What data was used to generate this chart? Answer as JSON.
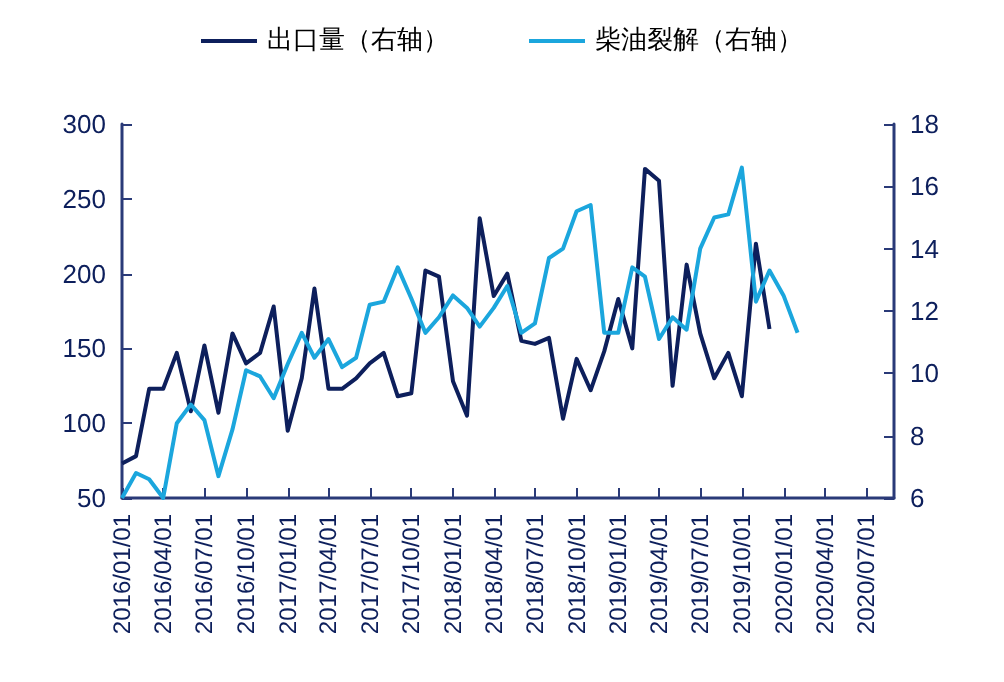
{
  "chart_data": {
    "type": "line",
    "legend": "top",
    "grid": false,
    "marker": "none",
    "line_style": "solid",
    "x": [
      "2016-01-01",
      "2016-02-01",
      "2016-03-01",
      "2016-04-01",
      "2016-05-01",
      "2016-06-01",
      "2016-07-01",
      "2016-08-01",
      "2016-09-01",
      "2016-10-01",
      "2016-11-01",
      "2016-12-01",
      "2017-01-01",
      "2017-02-01",
      "2017-03-01",
      "2017-04-01",
      "2017-05-01",
      "2017-06-01",
      "2017-07-01",
      "2017-08-01",
      "2017-09-01",
      "2017-10-01",
      "2017-11-01",
      "2017-12-01",
      "2018-01-01",
      "2018-02-01",
      "2018-03-01",
      "2018-04-01",
      "2018-05-01",
      "2018-06-01",
      "2018-07-01",
      "2018-08-01",
      "2018-09-01",
      "2018-10-01",
      "2018-11-01",
      "2018-12-01",
      "2019-01-01",
      "2019-02-01",
      "2019-03-01",
      "2019-04-01",
      "2019-05-01",
      "2019-06-01",
      "2019-07-01",
      "2019-08-01",
      "2019-09-01",
      "2019-10-01",
      "2019-11-01",
      "2019-12-01",
      "2020-01-01",
      "2020-02-01"
    ],
    "series": [
      {
        "name": "出口量（右轴）",
        "color": "#0d1f5c",
        "axis": "y",
        "values": [
          73,
          78,
          123,
          123,
          147,
          108,
          152,
          107,
          160,
          140,
          147,
          178,
          95,
          130,
          190,
          123,
          123,
          130,
          140,
          147,
          118,
          120,
          202,
          198,
          128,
          105,
          237,
          185,
          200,
          155,
          153,
          157,
          103,
          143,
          122,
          148,
          183,
          150,
          270,
          262,
          125,
          206,
          160,
          130,
          147,
          118,
          220,
          163,
          null,
          null
        ]
      },
      {
        "name": "柴油裂解（右轴）",
        "color": "#1ba6dd",
        "axis": "y2",
        "values": [
          6.0,
          6.8,
          6.6,
          6.0,
          8.4,
          9.0,
          8.5,
          6.7,
          8.2,
          10.1,
          9.9,
          9.2,
          10.3,
          11.3,
          10.5,
          11.1,
          10.2,
          10.5,
          12.2,
          12.3,
          13.4,
          12.4,
          11.3,
          11.8,
          12.5,
          12.1,
          11.5,
          12.1,
          12.8,
          11.3,
          11.6,
          13.7,
          14.0,
          15.2,
          15.4,
          11.3,
          11.3,
          13.4,
          13.1,
          11.1,
          11.8,
          11.4,
          14.0,
          15.0,
          15.1,
          16.6,
          12.3,
          13.3,
          12.5,
          11.3
        ]
      }
    ],
    "xlim": [
      "2016-01-01",
      "2020-09-01"
    ],
    "xticks": [
      {
        "value": "2016-01-01",
        "label": "2016/01/01"
      },
      {
        "value": "2016-04-01",
        "label": "2016/04/01"
      },
      {
        "value": "2016-07-01",
        "label": "2016/07/01"
      },
      {
        "value": "2016-10-01",
        "label": "2016/10/01"
      },
      {
        "value": "2017-01-01",
        "label": "2017/01/01"
      },
      {
        "value": "2017-04-01",
        "label": "2017/04/01"
      },
      {
        "value": "2017-07-01",
        "label": "2017/07/01"
      },
      {
        "value": "2017-10-01",
        "label": "2017/10/01"
      },
      {
        "value": "2018-01-01",
        "label": "2018/01/01"
      },
      {
        "value": "2018-04-01",
        "label": "2018/04/01"
      },
      {
        "value": "2018-07-01",
        "label": "2018/07/01"
      },
      {
        "value": "2018-10-01",
        "label": "2018/10/01"
      },
      {
        "value": "2019-01-01",
        "label": "2019/01/01"
      },
      {
        "value": "2019-04-01",
        "label": "2019/04/01"
      },
      {
        "value": "2019-07-01",
        "label": "2019/07/01"
      },
      {
        "value": "2019-10-01",
        "label": "2019/10/01"
      },
      {
        "value": "2020-01-01",
        "label": "2020/01/01"
      },
      {
        "value": "2020-04-01",
        "label": "2020/04/01"
      },
      {
        "value": "2020-07-01",
        "label": "2020/07/01"
      }
    ],
    "ylim": [
      50,
      300
    ],
    "yticks": [
      50,
      100,
      150,
      200,
      250,
      300
    ],
    "y2lim": [
      6,
      18
    ],
    "y2ticks": [
      6,
      8,
      10,
      12,
      14,
      16,
      18
    ]
  }
}
